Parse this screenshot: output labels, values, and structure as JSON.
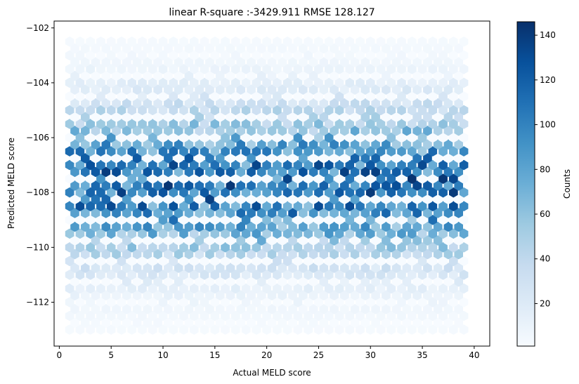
{
  "chart_data": {
    "type": "heatmap",
    "subtype": "hexbin",
    "title": "linear R-square :-3429.911 RMSE 128.127",
    "xlabel": "Actual MELD score",
    "ylabel": "Predicted MELD score",
    "xlim": [
      -0.5,
      41.5
    ],
    "ylim": [
      -113.6,
      -101.75
    ],
    "xticks": [
      0,
      5,
      10,
      15,
      20,
      25,
      30,
      35,
      40
    ],
    "yticks": [
      -112,
      -110,
      -108,
      -106,
      -104,
      -102
    ],
    "xticklabels": [
      "0",
      "5",
      "10",
      "15",
      "20",
      "25",
      "30",
      "35",
      "40"
    ],
    "yticklabels": [
      "−112",
      "−110",
      "−108",
      "−106",
      "−104",
      "−102"
    ],
    "grid": false,
    "colormap": "Blues",
    "bins": {
      "x_range": [
        1,
        39
      ],
      "y_range": [
        -113,
        -102.5
      ],
      "row_step": 0.25,
      "col_step": 1.0,
      "odd_row_x_offset": 0.5,
      "gap_every_n_rows": 3
    },
    "density_profile": {
      "y_center": -107.7,
      "y_spread": 2.6,
      "peak_count": 145,
      "min_count": 1
    },
    "colorbar": {
      "label": "Counts",
      "range": [
        1,
        146
      ],
      "ticks": [
        20,
        40,
        60,
        80,
        100,
        120,
        140
      ],
      "ticklabels": [
        "20",
        "40",
        "60",
        "80",
        "100",
        "120",
        "140"
      ]
    }
  }
}
